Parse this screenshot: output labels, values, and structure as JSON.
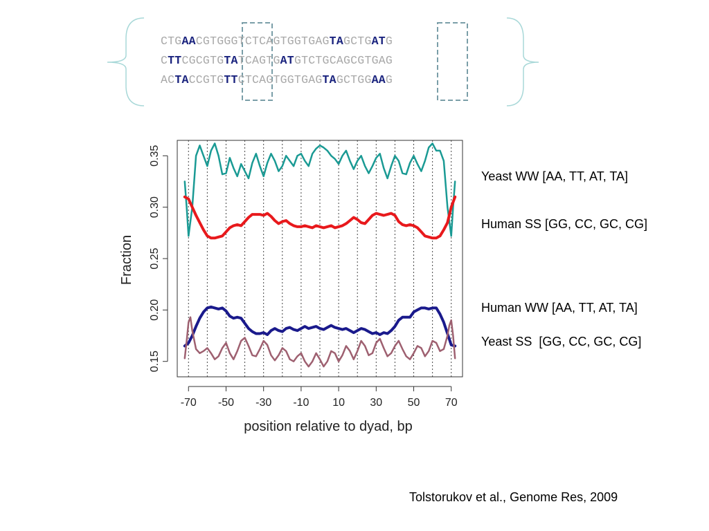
{
  "sequences": [
    [
      [
        "CTG",
        false
      ],
      [
        "AA",
        true
      ],
      [
        "CGTGGGTCTCAGTGGTGAG",
        false
      ],
      [
        "TA",
        true
      ],
      [
        "GCTG",
        false
      ],
      [
        "AT",
        true
      ],
      [
        "G",
        false
      ]
    ],
    [
      [
        "C",
        false
      ],
      [
        "TT",
        true
      ],
      [
        "CGCGTG",
        false
      ],
      [
        "TA",
        true
      ],
      [
        "TCAGTG",
        false
      ],
      [
        "AT",
        true
      ],
      [
        "GTCTGCAGCGTGAG",
        false
      ]
    ],
    [
      [
        "AC",
        false
      ],
      [
        "TA",
        true
      ],
      [
        "CCGTG",
        false
      ],
      [
        "TT",
        true
      ],
      [
        "CTCAGTGGTGAG",
        false
      ],
      [
        "TA",
        true
      ],
      [
        "GCTGG",
        false
      ],
      [
        "AA",
        true
      ],
      [
        "G",
        false
      ]
    ]
  ],
  "legend": {
    "yeast_ww": "Yeast WW [AA, TT, AT, TA]",
    "human_ss": "Human SS [GG, CC, GC, CG]",
    "human_ww": "Human WW [AA, TT, AT, TA]",
    "yeast_ss": "Yeast SS  [GG, CC, GC, CG]"
  },
  "citation": "Tolstorukov et al., Genome Res, 2009",
  "chart_data": {
    "type": "line",
    "title": "",
    "xlabel": "position relative to dyad, bp",
    "ylabel": "Fraction",
    "xlim": [
      -76,
      76
    ],
    "ylim": [
      0.135,
      0.365
    ],
    "xticks": [
      -70,
      -50,
      -30,
      -10,
      10,
      30,
      50,
      70
    ],
    "xtick_labels": [
      "-70",
      "-50",
      "-30",
      "-10",
      "10",
      "30",
      "50",
      "70"
    ],
    "yticks": [
      0.15,
      0.2,
      0.25,
      0.3,
      0.35
    ],
    "ytick_labels": [
      "0.15",
      "0.20",
      "0.25",
      "0.30",
      "0.35"
    ],
    "vertical_grid_x": [
      -70,
      -60,
      -50,
      -40,
      -30,
      -20,
      -10,
      0,
      10,
      20,
      30,
      40,
      50,
      60,
      70
    ],
    "series": [
      {
        "name": "Yeast WW [AA, TT, AT, TA]",
        "color": "#1a9a94",
        "width": 2.5,
        "x": [
          -72,
          -71,
          -70,
          -68,
          -66,
          -64,
          -62,
          -60,
          -58,
          -56,
          -54,
          -52,
          -50,
          -48,
          -46,
          -44,
          -42,
          -40,
          -38,
          -36,
          -34,
          -32,
          -30,
          -28,
          -26,
          -24,
          -22,
          -20,
          -18,
          -16,
          -14,
          -12,
          -10,
          -8,
          -6,
          -4,
          -2,
          0,
          2,
          4,
          6,
          8,
          10,
          12,
          14,
          16,
          18,
          20,
          22,
          24,
          26,
          28,
          30,
          32,
          34,
          36,
          38,
          40,
          42,
          44,
          46,
          48,
          50,
          52,
          54,
          56,
          58,
          60,
          62,
          64,
          66,
          68,
          70,
          71,
          72
        ],
        "y": [
          0.325,
          0.3,
          0.272,
          0.3,
          0.35,
          0.36,
          0.35,
          0.34,
          0.355,
          0.362,
          0.35,
          0.332,
          0.333,
          0.348,
          0.338,
          0.33,
          0.342,
          0.335,
          0.328,
          0.343,
          0.352,
          0.34,
          0.33,
          0.343,
          0.352,
          0.345,
          0.335,
          0.34,
          0.35,
          0.345,
          0.34,
          0.35,
          0.352,
          0.345,
          0.34,
          0.352,
          0.357,
          0.36,
          0.358,
          0.355,
          0.35,
          0.347,
          0.342,
          0.35,
          0.355,
          0.345,
          0.337,
          0.345,
          0.35,
          0.34,
          0.333,
          0.34,
          0.348,
          0.352,
          0.338,
          0.328,
          0.34,
          0.35,
          0.345,
          0.333,
          0.332,
          0.343,
          0.35,
          0.342,
          0.335,
          0.345,
          0.358,
          0.362,
          0.355,
          0.355,
          0.345,
          0.3,
          0.272,
          0.3,
          0.325
        ]
      },
      {
        "name": "Human SS [GG, CC, GC, CG]",
        "color": "#e8191c",
        "width": 4,
        "x": [
          -72,
          -70,
          -68,
          -66,
          -64,
          -62,
          -60,
          -58,
          -56,
          -54,
          -52,
          -50,
          -48,
          -46,
          -44,
          -42,
          -40,
          -38,
          -36,
          -34,
          -32,
          -30,
          -28,
          -26,
          -24,
          -22,
          -20,
          -18,
          -16,
          -14,
          -12,
          -10,
          -8,
          -6,
          -4,
          -2,
          0,
          2,
          4,
          6,
          8,
          10,
          12,
          14,
          16,
          18,
          20,
          22,
          24,
          26,
          28,
          30,
          32,
          34,
          36,
          38,
          40,
          42,
          44,
          46,
          48,
          50,
          52,
          54,
          56,
          58,
          60,
          62,
          64,
          66,
          68,
          70,
          72
        ],
        "y": [
          0.31,
          0.308,
          0.3,
          0.292,
          0.285,
          0.278,
          0.272,
          0.27,
          0.27,
          0.271,
          0.272,
          0.276,
          0.28,
          0.282,
          0.283,
          0.282,
          0.286,
          0.29,
          0.293,
          0.293,
          0.293,
          0.292,
          0.294,
          0.291,
          0.287,
          0.284,
          0.286,
          0.287,
          0.284,
          0.282,
          0.281,
          0.281,
          0.282,
          0.281,
          0.28,
          0.282,
          0.281,
          0.28,
          0.281,
          0.282,
          0.28,
          0.281,
          0.282,
          0.284,
          0.287,
          0.29,
          0.288,
          0.285,
          0.284,
          0.288,
          0.292,
          0.294,
          0.293,
          0.292,
          0.293,
          0.294,
          0.292,
          0.286,
          0.283,
          0.282,
          0.283,
          0.282,
          0.28,
          0.276,
          0.272,
          0.271,
          0.27,
          0.27,
          0.272,
          0.278,
          0.285,
          0.3,
          0.31
        ]
      },
      {
        "name": "Human WW [AA, TT, AT, TA]",
        "color": "#1a1a8c",
        "width": 4,
        "x": [
          -72,
          -70,
          -68,
          -66,
          -64,
          -62,
          -60,
          -58,
          -56,
          -54,
          -52,
          -50,
          -48,
          -46,
          -44,
          -42,
          -40,
          -38,
          -36,
          -34,
          -32,
          -30,
          -28,
          -26,
          -24,
          -22,
          -20,
          -18,
          -16,
          -14,
          -12,
          -10,
          -8,
          -6,
          -4,
          -2,
          0,
          2,
          4,
          6,
          8,
          10,
          12,
          14,
          16,
          18,
          20,
          22,
          24,
          26,
          28,
          30,
          32,
          34,
          36,
          38,
          40,
          42,
          44,
          46,
          48,
          50,
          52,
          54,
          56,
          58,
          60,
          62,
          64,
          66,
          68,
          70,
          72
        ],
        "y": [
          0.165,
          0.168,
          0.175,
          0.184,
          0.192,
          0.198,
          0.202,
          0.203,
          0.202,
          0.201,
          0.202,
          0.199,
          0.194,
          0.192,
          0.193,
          0.192,
          0.187,
          0.182,
          0.179,
          0.177,
          0.177,
          0.178,
          0.176,
          0.18,
          0.182,
          0.18,
          0.179,
          0.182,
          0.183,
          0.181,
          0.18,
          0.182,
          0.184,
          0.182,
          0.183,
          0.184,
          0.182,
          0.181,
          0.183,
          0.185,
          0.183,
          0.182,
          0.181,
          0.182,
          0.18,
          0.178,
          0.18,
          0.182,
          0.181,
          0.179,
          0.177,
          0.178,
          0.176,
          0.178,
          0.177,
          0.18,
          0.184,
          0.19,
          0.193,
          0.193,
          0.193,
          0.198,
          0.2,
          0.202,
          0.202,
          0.201,
          0.202,
          0.202,
          0.196,
          0.188,
          0.177,
          0.166,
          0.165
        ]
      },
      {
        "name": "Yeast SS  [GG, CC, GC, CG]",
        "color": "#9e6070",
        "width": 2.5,
        "x": [
          -72,
          -71,
          -70,
          -69,
          -68,
          -66,
          -64,
          -62,
          -60,
          -58,
          -56,
          -54,
          -52,
          -50,
          -48,
          -46,
          -44,
          -42,
          -40,
          -38,
          -36,
          -34,
          -32,
          -30,
          -28,
          -26,
          -24,
          -22,
          -20,
          -18,
          -16,
          -14,
          -12,
          -10,
          -8,
          -6,
          -4,
          -2,
          0,
          2,
          4,
          6,
          8,
          10,
          12,
          14,
          16,
          18,
          20,
          22,
          24,
          26,
          28,
          30,
          32,
          34,
          36,
          38,
          40,
          42,
          44,
          46,
          48,
          50,
          52,
          54,
          56,
          58,
          60,
          62,
          64,
          66,
          68,
          69,
          70,
          71,
          72
        ],
        "y": [
          0.153,
          0.17,
          0.188,
          0.193,
          0.18,
          0.162,
          0.158,
          0.16,
          0.163,
          0.158,
          0.152,
          0.155,
          0.163,
          0.168,
          0.158,
          0.152,
          0.16,
          0.17,
          0.173,
          0.165,
          0.156,
          0.155,
          0.162,
          0.17,
          0.166,
          0.156,
          0.151,
          0.156,
          0.163,
          0.16,
          0.152,
          0.15,
          0.155,
          0.158,
          0.15,
          0.145,
          0.15,
          0.158,
          0.152,
          0.145,
          0.15,
          0.16,
          0.158,
          0.15,
          0.156,
          0.165,
          0.16,
          0.152,
          0.16,
          0.17,
          0.165,
          0.156,
          0.158,
          0.168,
          0.172,
          0.163,
          0.155,
          0.158,
          0.165,
          0.17,
          0.162,
          0.155,
          0.152,
          0.158,
          0.165,
          0.163,
          0.155,
          0.16,
          0.17,
          0.168,
          0.16,
          0.162,
          0.175,
          0.185,
          0.19,
          0.175,
          0.153
        ]
      }
    ],
    "legend_placement": "right"
  }
}
